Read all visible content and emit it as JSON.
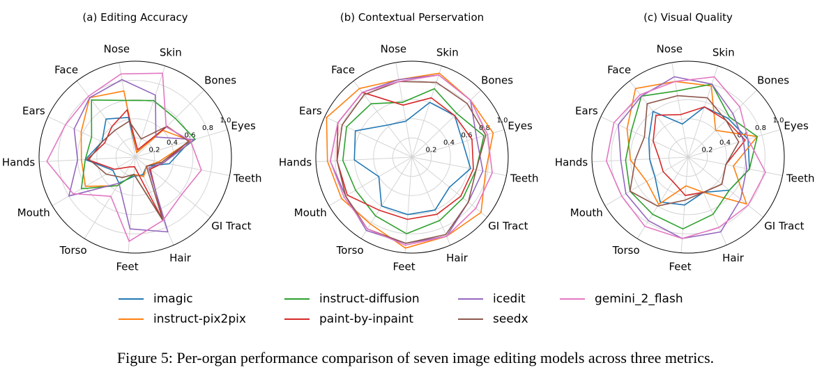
{
  "chart_data": {
    "type": "radar",
    "axes": [
      "Skin",
      "Bones",
      "Eyes",
      "Teeth",
      "GI Tract",
      "Hair",
      "Feet",
      "Torso",
      "Mouth",
      "Hands",
      "Ears",
      "Face",
      "Nose"
    ],
    "rlim": [
      0,
      1
    ],
    "rticks": [
      0.2,
      0.4,
      0.6,
      0.8,
      1.0
    ],
    "rtick_labels": [
      "0.2",
      "0.4",
      "0.6",
      "0.8",
      "1.0"
    ],
    "grid": true,
    "series_meta": [
      {
        "name": "imagic",
        "color": "#1f77b4"
      },
      {
        "name": "instruct-pix2pix",
        "color": "#ff7f0e"
      },
      {
        "name": "instruct-diffusion",
        "color": "#2ca02c"
      },
      {
        "name": "paint-by-inpaint",
        "color": "#d62728"
      },
      {
        "name": "icedit",
        "color": "#9467bd"
      },
      {
        "name": "seedx",
        "color": "#8c564b"
      },
      {
        "name": "gemini_2_flash",
        "color": "#e377c2"
      }
    ],
    "panels": [
      {
        "title": "(a) Editing Accuracy",
        "series": [
          {
            "name": "imagic",
            "values": [
              0.05,
              0.45,
              0.6,
              0.36,
              0.15,
              0.2,
              0.2,
              0.32,
              0.27,
              0.52,
              0.38,
              0.5,
              0.42
            ]
          },
          {
            "name": "instruct-pix2pix",
            "values": [
              0.05,
              0.4,
              0.6,
              0.25,
              0.15,
              0.22,
              0.18,
              0.35,
              0.6,
              0.56,
              0.62,
              0.78,
              0.7
            ]
          },
          {
            "name": "instruct-diffusion",
            "values": [
              0.62,
              0.58,
              0.65,
              0.3,
              0.2,
              0.72,
              0.18,
              0.35,
              0.65,
              0.52,
              0.5,
              0.75,
              0.6
            ]
          },
          {
            "name": "paint-by-inpaint",
            "values": [
              0.08,
              0.46,
              0.58,
              0.3,
              0.2,
              0.72,
              0.1,
              0.12,
              0.25,
              0.5,
              0.35,
              0.4,
              0.5
            ]
          },
          {
            "name": "icedit",
            "values": [
              0.68,
              0.3,
              0.64,
              0.3,
              0.18,
              0.85,
              0.75,
              0.32,
              0.8,
              0.6,
              0.7,
              0.78,
              0.82
            ]
          },
          {
            "name": "seedx",
            "values": [
              0.2,
              0.46,
              0.58,
              0.28,
              0.15,
              0.72,
              0.18,
              0.25,
              0.35,
              0.48,
              0.38,
              0.35,
              0.38
            ]
          },
          {
            "name": "gemini_2_flash",
            "values": [
              0.92,
              0.45,
              0.6,
              0.7,
              0.62,
              0.72,
              0.88,
              0.48,
              0.75,
              0.92,
              0.8,
              0.8,
              0.88
            ]
          }
        ]
      },
      {
        "title": "(b) Contextual Perservation",
        "series": [
          {
            "name": "imagic",
            "values": [
              0.6,
              0.62,
              0.55,
              0.62,
              0.5,
              0.6,
              0.6,
              0.6,
              0.4,
              0.6,
              0.65,
              0.42,
              0.38
            ]
          },
          {
            "name": "instruct-pix2pix",
            "values": [
              0.92,
              0.85,
              0.88,
              0.78,
              0.92,
              0.9,
              0.95,
              0.82,
              0.85,
              0.88,
              0.98,
              0.9,
              0.82
            ]
          },
          {
            "name": "instruct-diffusion",
            "values": [
              0.75,
              0.65,
              0.78,
              0.68,
              0.68,
              0.72,
              0.8,
              0.72,
              0.68,
              0.72,
              0.75,
              0.7,
              0.58
            ]
          },
          {
            "name": "paint-by-inpaint",
            "values": [
              0.65,
              0.62,
              0.65,
              0.65,
              0.65,
              0.65,
              0.65,
              0.65,
              0.78,
              0.78,
              0.85,
              0.85,
              0.55
            ]
          },
          {
            "name": "icedit",
            "values": [
              0.9,
              0.85,
              0.7,
              0.75,
              0.75,
              0.9,
              0.9,
              0.9,
              0.8,
              0.85,
              0.85,
              0.85,
              0.82
            ]
          },
          {
            "name": "seedx",
            "values": [
              0.82,
              0.8,
              0.8,
              0.68,
              0.75,
              0.88,
              0.9,
              0.88,
              0.8,
              0.78,
              0.8,
              0.82,
              0.8
            ]
          },
          {
            "name": "gemini_2_flash",
            "values": [
              0.9,
              0.85,
              0.82,
              0.85,
              0.85,
              0.9,
              0.92,
              0.88,
              0.82,
              0.85,
              0.85,
              0.85,
              0.8
            ]
          }
        ]
      },
      {
        "title": "(c) Visual Quality",
        "series": [
          {
            "name": "imagic",
            "values": [
              0.55,
              0.58,
              0.65,
              0.65,
              0.55,
              0.4,
              0.5,
              0.55,
              0.4,
              0.4,
              0.45,
              0.6,
              0.35
            ]
          },
          {
            "name": "instruct-pix2pix",
            "values": [
              0.78,
              0.4,
              0.75,
              0.48,
              0.78,
              0.4,
              0.3,
              0.58,
              0.5,
              0.6,
              0.7,
              0.9,
              0.8
            ]
          },
          {
            "name": "instruct-diffusion",
            "values": [
              0.8,
              0.6,
              0.75,
              0.65,
              0.55,
              0.65,
              0.75,
              0.7,
              0.7,
              0.65,
              0.65,
              0.8,
              0.7
            ]
          },
          {
            "name": "paint-by-inpaint",
            "values": [
              0.55,
              0.55,
              0.62,
              0.4,
              0.45,
              0.4,
              0.4,
              0.3,
              0.3,
              0.3,
              0.4,
              0.55,
              0.45
            ]
          },
          {
            "name": "icedit",
            "values": [
              0.8,
              0.65,
              0.6,
              0.62,
              0.7,
              0.85,
              0.85,
              0.78,
              0.75,
              0.7,
              0.8,
              0.8,
              0.85
            ]
          },
          {
            "name": "seedx",
            "values": [
              0.65,
              0.55,
              0.55,
              0.4,
              0.45,
              0.4,
              0.45,
              0.6,
              0.7,
              0.55,
              0.5,
              0.7,
              0.65
            ]
          },
          {
            "name": "gemini_2_flash",
            "values": [
              0.88,
              0.75,
              0.65,
              0.82,
              0.8,
              0.8,
              0.85,
              0.85,
              0.8,
              0.85,
              0.85,
              0.82,
              0.8
            ]
          }
        ]
      }
    ]
  },
  "legend": [
    {
      "label": "imagic",
      "color": "#1f77b4"
    },
    {
      "label": "instruct-pix2pix",
      "color": "#ff7f0e"
    },
    {
      "label": "instruct-diffusion",
      "color": "#2ca02c"
    },
    {
      "label": "paint-by-inpaint",
      "color": "#d62728"
    },
    {
      "label": "icedit",
      "color": "#9467bd"
    },
    {
      "label": "seedx",
      "color": "#8c564b"
    },
    {
      "label": "gemini_2_flash",
      "color": "#e377c2"
    }
  ],
  "caption": "Figure 5: Per-organ performance comparison of seven image editing models across three metrics."
}
